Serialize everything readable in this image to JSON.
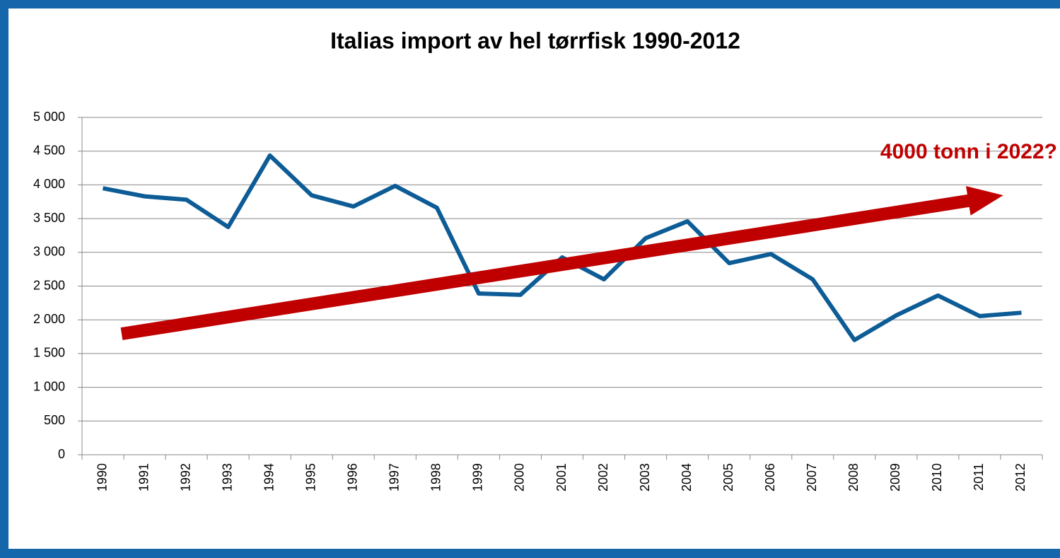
{
  "chart_data": {
    "type": "line",
    "title": "Italias import av hel tørrfisk 1990-2012",
    "annotation": "4000 tonn i 2022?",
    "categories": [
      "1990",
      "1991",
      "1992",
      "1993",
      "1994",
      "1995",
      "1996",
      "1997",
      "1998",
      "1999",
      "2000",
      "2001",
      "2002",
      "2003",
      "2004",
      "2005",
      "2006",
      "2007",
      "2008",
      "2009",
      "2010",
      "2011",
      "2012"
    ],
    "series": [
      {
        "color": "#0d5c96",
        "values": [
          3950,
          3830,
          3780,
          3375,
          4435,
          3845,
          3680,
          3985,
          3660,
          2390,
          2370,
          2925,
          2600,
          3210,
          3460,
          2840,
          2975,
          2600,
          1700,
          2065,
          2360,
          2055,
          2105
        ]
      }
    ],
    "ylim": [
      0,
      5000
    ],
    "yticks": [
      0,
      500,
      {
        "value": 1000,
        "label": "1 000"
      },
      {
        "value": 1500,
        "label": "1 500"
      },
      {
        "value": 2000,
        "label": "2 000"
      },
      {
        "value": 2500,
        "label": "2 500"
      },
      {
        "value": 3000,
        "label": "3 000"
      },
      {
        "value": 3500,
        "label": "3 500"
      },
      {
        "value": 4000,
        "label": "4 000"
      },
      {
        "value": 4500,
        "label": "4 500"
      },
      {
        "value": 5000,
        "label": "5 000"
      }
    ],
    "grid": true
  }
}
